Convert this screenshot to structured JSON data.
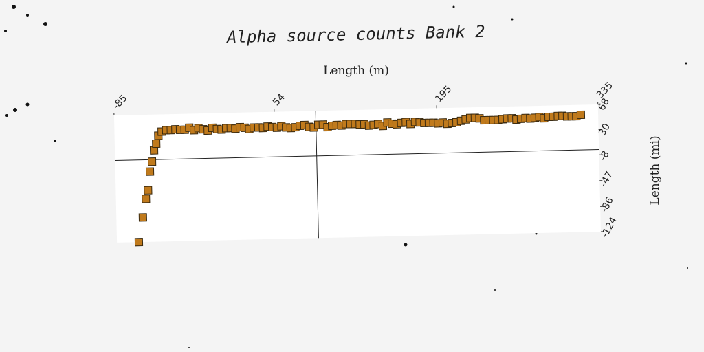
{
  "chart_data": {
    "type": "scatter",
    "title": "Alpha source counts Bank 2",
    "xlabel": "Length (m)",
    "ylabel": "Length (mi)",
    "xlim": [
      -85,
      335
    ],
    "ylim": [
      -124,
      68
    ],
    "x_ticks": [
      "-85",
      "54",
      "195",
      "335"
    ],
    "y_ticks": [
      "68",
      "30",
      "-8",
      "-47",
      "-86",
      "-124"
    ],
    "grid": false,
    "legend": "none",
    "marker": "square",
    "marker_color": "#c07a1c",
    "marker_edge": "#3a2a10",
    "series": [
      {
        "x": [
          -66,
          -62,
          -59,
          -57,
          -55,
          -53,
          -51,
          -49,
          -47,
          -44,
          -40,
          -36,
          -32,
          -28,
          -24,
          -20,
          -16,
          -12,
          -8,
          -4,
          0,
          4,
          8,
          12,
          16,
          20,
          24,
          28,
          32,
          36,
          40,
          44,
          48,
          52,
          56,
          60,
          64,
          68,
          72,
          76,
          80,
          84,
          88,
          92,
          96,
          100,
          104,
          108,
          112,
          116,
          120,
          124,
          128,
          132,
          136,
          140,
          144,
          148,
          152,
          156,
          160,
          164,
          168,
          172,
          176,
          180,
          184,
          188,
          192,
          196,
          200,
          204,
          208,
          212,
          216,
          220,
          224,
          228,
          232,
          236,
          240,
          244,
          248,
          252,
          256,
          260,
          264,
          268,
          272,
          276,
          280,
          284,
          288,
          292,
          296,
          300,
          304,
          308,
          312,
          316,
          320
        ],
        "y": [
          -124,
          -87,
          -59,
          -46,
          -18,
          -3,
          14,
          24,
          36,
          42,
          44,
          44,
          45,
          44,
          44,
          47,
          43,
          46,
          44,
          42,
          46,
          44,
          43,
          45,
          45,
          44,
          46,
          45,
          43,
          45,
          45,
          44,
          46,
          45,
          44,
          46,
          44,
          43,
          44,
          46,
          47,
          44,
          43,
          47,
          47,
          43,
          45,
          46,
          45,
          47,
          47,
          47,
          46,
          46,
          44,
          45,
          46,
          43,
          48,
          46,
          45,
          47,
          48,
          45,
          48,
          47,
          46,
          46,
          46,
          45,
          46,
          44,
          45,
          46,
          48,
          50,
          52,
          52,
          51,
          48,
          48,
          48,
          48,
          49,
          50,
          50,
          48,
          49,
          50,
          49,
          50,
          51,
          49,
          51,
          51,
          52,
          52,
          51,
          51,
          51,
          53
        ]
      }
    ]
  }
}
